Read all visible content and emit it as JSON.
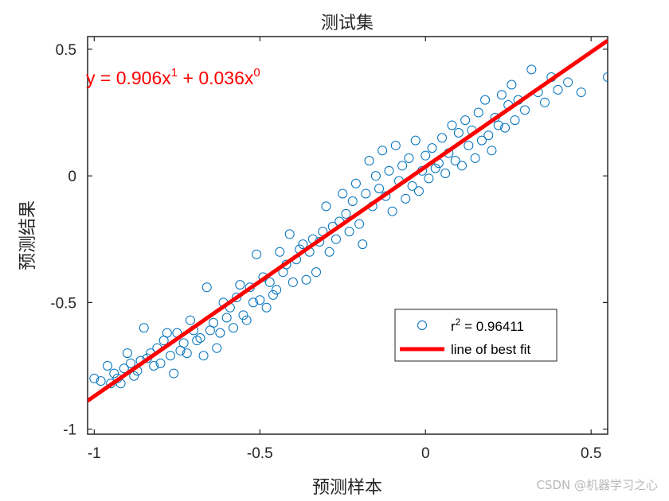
{
  "chart_data": {
    "type": "scatter",
    "title": "测试集",
    "xlabel": "预测样本",
    "ylabel": "预测结果",
    "xlim": [
      -1.02,
      0.55
    ],
    "ylim": [
      -1.02,
      0.55
    ],
    "xticks": [
      -1,
      -0.5,
      0,
      0.5
    ],
    "yticks": [
      -1,
      -0.5,
      0,
      0.5
    ],
    "xtick_labels": [
      "-1",
      "-0.5",
      "0",
      "0.5"
    ],
    "ytick_labels": [
      "-1",
      "-0.5",
      "0",
      "0.5"
    ],
    "grid": false,
    "fit_line": {
      "slope": 0.906,
      "intercept": 0.036,
      "color": "#ff0000"
    },
    "equation": {
      "prefix": "y = 0.906x",
      "exp1": "1",
      "middle": " + 0.036x",
      "exp2": "0"
    },
    "legend": {
      "position": "bottom-right",
      "entries": [
        {
          "prefix": "r",
          "sup": "2",
          "suffix": " = 0.96411",
          "kind": "marker"
        },
        {
          "label": "line of best fit",
          "kind": "line"
        }
      ]
    },
    "marker_color": "#0072bd",
    "points": [
      [
        -1.0,
        -0.8
      ],
      [
        -0.98,
        -0.81
      ],
      [
        -0.96,
        -0.75
      ],
      [
        -0.95,
        -0.82
      ],
      [
        -0.94,
        -0.78
      ],
      [
        -0.93,
        -0.8
      ],
      [
        -0.92,
        -0.82
      ],
      [
        -0.91,
        -0.76
      ],
      [
        -0.9,
        -0.7
      ],
      [
        -0.89,
        -0.74
      ],
      [
        -0.88,
        -0.79
      ],
      [
        -0.87,
        -0.77
      ],
      [
        -0.86,
        -0.73
      ],
      [
        -0.85,
        -0.6
      ],
      [
        -0.84,
        -0.72
      ],
      [
        -0.83,
        -0.7
      ],
      [
        -0.82,
        -0.75
      ],
      [
        -0.81,
        -0.68
      ],
      [
        -0.8,
        -0.74
      ],
      [
        -0.79,
        -0.65
      ],
      [
        -0.78,
        -0.62
      ],
      [
        -0.77,
        -0.71
      ],
      [
        -0.76,
        -0.78
      ],
      [
        -0.75,
        -0.62
      ],
      [
        -0.74,
        -0.69
      ],
      [
        -0.73,
        -0.66
      ],
      [
        -0.72,
        -0.7
      ],
      [
        -0.71,
        -0.57
      ],
      [
        -0.7,
        -0.61
      ],
      [
        -0.69,
        -0.65
      ],
      [
        -0.68,
        -0.64
      ],
      [
        -0.67,
        -0.71
      ],
      [
        -0.66,
        -0.44
      ],
      [
        -0.65,
        -0.61
      ],
      [
        -0.64,
        -0.58
      ],
      [
        -0.63,
        -0.68
      ],
      [
        -0.62,
        -0.62
      ],
      [
        -0.61,
        -0.5
      ],
      [
        -0.6,
        -0.56
      ],
      [
        -0.59,
        -0.52
      ],
      [
        -0.58,
        -0.6
      ],
      [
        -0.57,
        -0.48
      ],
      [
        -0.56,
        -0.43
      ],
      [
        -0.55,
        -0.55
      ],
      [
        -0.54,
        -0.57
      ],
      [
        -0.53,
        -0.44
      ],
      [
        -0.52,
        -0.5
      ],
      [
        -0.51,
        -0.31
      ],
      [
        -0.5,
        -0.49
      ],
      [
        -0.49,
        -0.4
      ],
      [
        -0.48,
        -0.52
      ],
      [
        -0.47,
        -0.42
      ],
      [
        -0.46,
        -0.47
      ],
      [
        -0.45,
        -0.45
      ],
      [
        -0.44,
        -0.3
      ],
      [
        -0.43,
        -0.38
      ],
      [
        -0.42,
        -0.35
      ],
      [
        -0.41,
        -0.23
      ],
      [
        -0.4,
        -0.42
      ],
      [
        -0.39,
        -0.33
      ],
      [
        -0.38,
        -0.29
      ],
      [
        -0.37,
        -0.27
      ],
      [
        -0.36,
        -0.41
      ],
      [
        -0.35,
        -0.3
      ],
      [
        -0.34,
        -0.25
      ],
      [
        -0.33,
        -0.38
      ],
      [
        -0.32,
        -0.26
      ],
      [
        -0.31,
        -0.22
      ],
      [
        -0.3,
        -0.12
      ],
      [
        -0.29,
        -0.3
      ],
      [
        -0.28,
        -0.2
      ],
      [
        -0.27,
        -0.25
      ],
      [
        -0.26,
        -0.18
      ],
      [
        -0.25,
        -0.07
      ],
      [
        -0.24,
        -0.15
      ],
      [
        -0.23,
        -0.22
      ],
      [
        -0.22,
        -0.1
      ],
      [
        -0.21,
        -0.03
      ],
      [
        -0.2,
        -0.19
      ],
      [
        -0.19,
        -0.27
      ],
      [
        -0.18,
        -0.07
      ],
      [
        -0.17,
        0.06
      ],
      [
        -0.16,
        -0.12
      ],
      [
        -0.15,
        0.0
      ],
      [
        -0.14,
        -0.05
      ],
      [
        -0.13,
        0.1
      ],
      [
        -0.12,
        -0.08
      ],
      [
        -0.11,
        0.02
      ],
      [
        -0.1,
        -0.14
      ],
      [
        -0.09,
        0.12
      ],
      [
        -0.08,
        -0.02
      ],
      [
        -0.07,
        0.04
      ],
      [
        -0.06,
        -0.09
      ],
      [
        -0.05,
        0.07
      ],
      [
        -0.04,
        -0.04
      ],
      [
        -0.03,
        0.14
      ],
      [
        -0.02,
        -0.06
      ],
      [
        -0.01,
        0.02
      ],
      [
        0.0,
        0.08
      ],
      [
        0.01,
        -0.01
      ],
      [
        0.02,
        0.11
      ],
      [
        0.03,
        0.03
      ],
      [
        0.04,
        0.05
      ],
      [
        0.05,
        0.15
      ],
      [
        0.06,
        0.01
      ],
      [
        0.07,
        0.09
      ],
      [
        0.08,
        0.2
      ],
      [
        0.09,
        0.06
      ],
      [
        0.1,
        0.17
      ],
      [
        0.11,
        0.04
      ],
      [
        0.12,
        0.22
      ],
      [
        0.13,
        0.12
      ],
      [
        0.14,
        0.18
      ],
      [
        0.15,
        0.07
      ],
      [
        0.16,
        0.25
      ],
      [
        0.17,
        0.14
      ],
      [
        0.18,
        0.3
      ],
      [
        0.19,
        0.16
      ],
      [
        0.2,
        0.1
      ],
      [
        0.21,
        0.23
      ],
      [
        0.22,
        0.2
      ],
      [
        0.23,
        0.32
      ],
      [
        0.24,
        0.19
      ],
      [
        0.25,
        0.28
      ],
      [
        0.26,
        0.36
      ],
      [
        0.27,
        0.22
      ],
      [
        0.28,
        0.3
      ],
      [
        0.3,
        0.26
      ],
      [
        0.32,
        0.42
      ],
      [
        0.34,
        0.33
      ],
      [
        0.36,
        0.29
      ],
      [
        0.38,
        0.39
      ],
      [
        0.4,
        0.34
      ],
      [
        0.43,
        0.37
      ],
      [
        0.47,
        0.33
      ],
      [
        0.55,
        0.39
      ]
    ]
  },
  "watermark": "CSDN @机器学习之心"
}
